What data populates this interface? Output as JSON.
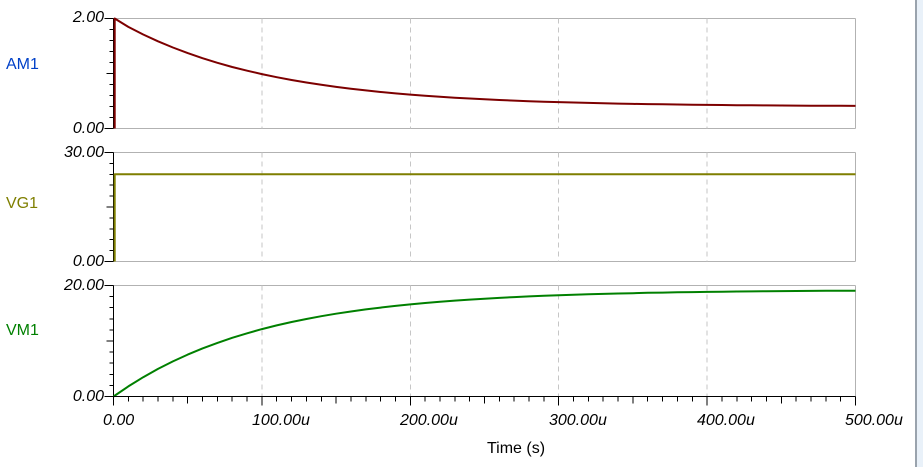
{
  "chart_data": {
    "type": "line",
    "xlabel": "Time (s)",
    "x_ticks": [
      "0.00",
      "100.00u",
      "200.00u",
      "300.00u",
      "400.00u",
      "500.00u"
    ],
    "x_range_us": [
      0,
      500
    ],
    "x_minor_tick_step_us": 10,
    "grid": "vertical-dashed-at-major-ticks",
    "frame_color": "#b2b2b2",
    "grid_color": "#c6c6c6",
    "axis_color": "#000000",
    "x_us": [
      0,
      10,
      20,
      30,
      40,
      50,
      60,
      70,
      80,
      90,
      100,
      110,
      120,
      130,
      140,
      150,
      160,
      170,
      180,
      190,
      200,
      210,
      220,
      230,
      240,
      250,
      260,
      270,
      280,
      290,
      300,
      310,
      320,
      330,
      340,
      350,
      360,
      370,
      380,
      390,
      400,
      410,
      420,
      430,
      440,
      450,
      460,
      470,
      480,
      490,
      500
    ],
    "panels": [
      {
        "label": "AM1",
        "label_color": "#0040c8",
        "color": "#7d0000",
        "ylim": [
          0,
          2
        ],
        "y_max_label": "2.00",
        "y_min_label": "0.00",
        "step_from_zero": true,
        "values": [
          2.0,
          1.848,
          1.71,
          1.585,
          1.472,
          1.37,
          1.278,
          1.195,
          1.119,
          1.051,
          0.989,
          0.933,
          0.882,
          0.836,
          0.795,
          0.757,
          0.723,
          0.692,
          0.664,
          0.639,
          0.617,
          0.596,
          0.577,
          0.56,
          0.545,
          0.531,
          0.519,
          0.508,
          0.497,
          0.488,
          0.48,
          0.472,
          0.465,
          0.459,
          0.453,
          0.448,
          0.444,
          0.44,
          0.436,
          0.432,
          0.429,
          0.427,
          0.424,
          0.422,
          0.42,
          0.418,
          0.416,
          0.415,
          0.413,
          0.412,
          0.411
        ]
      },
      {
        "label": "VG1",
        "label_color": "#7f7f00",
        "color": "#7f7f00",
        "ylim": [
          0,
          30
        ],
        "y_max_label": "30.00",
        "y_min_label": "0.00",
        "step_from_zero": true,
        "values": [
          24,
          24,
          24,
          24,
          24,
          24,
          24,
          24,
          24,
          24,
          24,
          24,
          24,
          24,
          24,
          24,
          24,
          24,
          24,
          24,
          24,
          24,
          24,
          24,
          24,
          24,
          24,
          24,
          24,
          24,
          24,
          24,
          24,
          24,
          24,
          24,
          24,
          24,
          24,
          24,
          24,
          24,
          24,
          24,
          24,
          24,
          24,
          24,
          24,
          24,
          24
        ]
      },
      {
        "label": "VM1",
        "label_color": "#008000",
        "color": "#008000",
        "ylim": [
          0,
          20
        ],
        "y_max_label": "20.00",
        "y_min_label": "0.00",
        "step_from_zero": false,
        "values": [
          0.0,
          1.827,
          3.481,
          4.977,
          6.33,
          7.555,
          8.663,
          9.666,
          10.573,
          11.394,
          12.137,
          12.808,
          13.417,
          13.968,
          14.465,
          14.916,
          15.323,
          15.692,
          16.026,
          16.328,
          16.602,
          16.85,
          17.073,
          17.274,
          17.458,
          17.623,
          17.773,
          17.909,
          18.032,
          18.144,
          18.244,
          18.336,
          18.417,
          18.493,
          18.559,
          18.62,
          18.676,
          18.725,
          18.771,
          18.811,
          18.849,
          18.88,
          18.912,
          18.938,
          18.964,
          18.985,
          19.006,
          19.023,
          19.04,
          19.054,
          19.068
        ]
      }
    ]
  }
}
